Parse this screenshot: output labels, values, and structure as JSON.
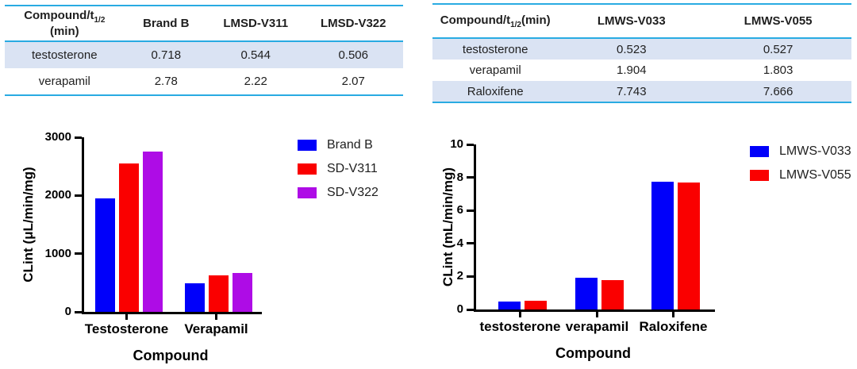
{
  "colors": {
    "table_border": "#29abe2",
    "table_stripe": "#dae3f3",
    "bar_blue": "#0000fa",
    "bar_red": "#fa0000",
    "bar_purple": "#ae0ce6"
  },
  "tables": {
    "left": {
      "header": {
        "compound": {
          "prefix": "Compound/t",
          "sub": "1/2",
          "suffix": " (min)"
        },
        "columns": [
          "Brand B",
          "LMSD-V311",
          "LMSD-V322"
        ]
      },
      "rows": [
        {
          "compound": "testosterone",
          "values": [
            "0.718",
            "0.544",
            "0.506"
          ]
        },
        {
          "compound": "verapamil",
          "values": [
            "2.78",
            "2.22",
            "2.07"
          ]
        }
      ]
    },
    "right": {
      "header": {
        "compound": {
          "prefix": "Compound/t",
          "sub": "1/2",
          "suffix": "(min)"
        },
        "columns": [
          "LMWS-V033",
          "LMWS-V055"
        ]
      },
      "rows": [
        {
          "compound": "testosterone",
          "values": [
            "0.523",
            "0.527"
          ]
        },
        {
          "compound": "verapamil",
          "values": [
            "1.904",
            "1.803"
          ]
        },
        {
          "compound": "Raloxifene",
          "values": [
            "7.743",
            "7.666"
          ]
        }
      ]
    }
  },
  "chart_data": [
    {
      "type": "bar",
      "title": "",
      "categories": [
        "Testosterone",
        "Verapamil"
      ],
      "series": [
        {
          "name": "Brand B",
          "color": "#0000fa",
          "values": [
            1950,
            490
          ]
        },
        {
          "name": "SD-V311",
          "color": "#fa0000",
          "values": [
            2550,
            630
          ]
        },
        {
          "name": "SD-V322",
          "color": "#ae0ce6",
          "values": [
            2750,
            670
          ]
        }
      ],
      "ylabel": "CLint (μL/min/mg)",
      "xlabel": "Compound",
      "ylim": [
        0,
        3000
      ],
      "yticks": [
        0,
        1000,
        2000,
        3000
      ],
      "grid": false,
      "legend_position": "right"
    },
    {
      "type": "bar",
      "title": "",
      "categories": [
        "testosterone",
        "verapamil",
        "Raloxifene"
      ],
      "series": [
        {
          "name": "LMWS-V033",
          "color": "#0000fa",
          "values": [
            0.5,
            1.9,
            7.74
          ]
        },
        {
          "name": "LMWS-V055",
          "color": "#fa0000",
          "values": [
            0.53,
            1.8,
            7.67
          ]
        }
      ],
      "ylabel": "CLint (mL/min/mg)",
      "xlabel": "Compound",
      "ylim": [
        0,
        10
      ],
      "yticks": [
        0,
        2,
        4,
        6,
        8,
        10
      ],
      "grid": false,
      "legend_position": "right"
    }
  ]
}
